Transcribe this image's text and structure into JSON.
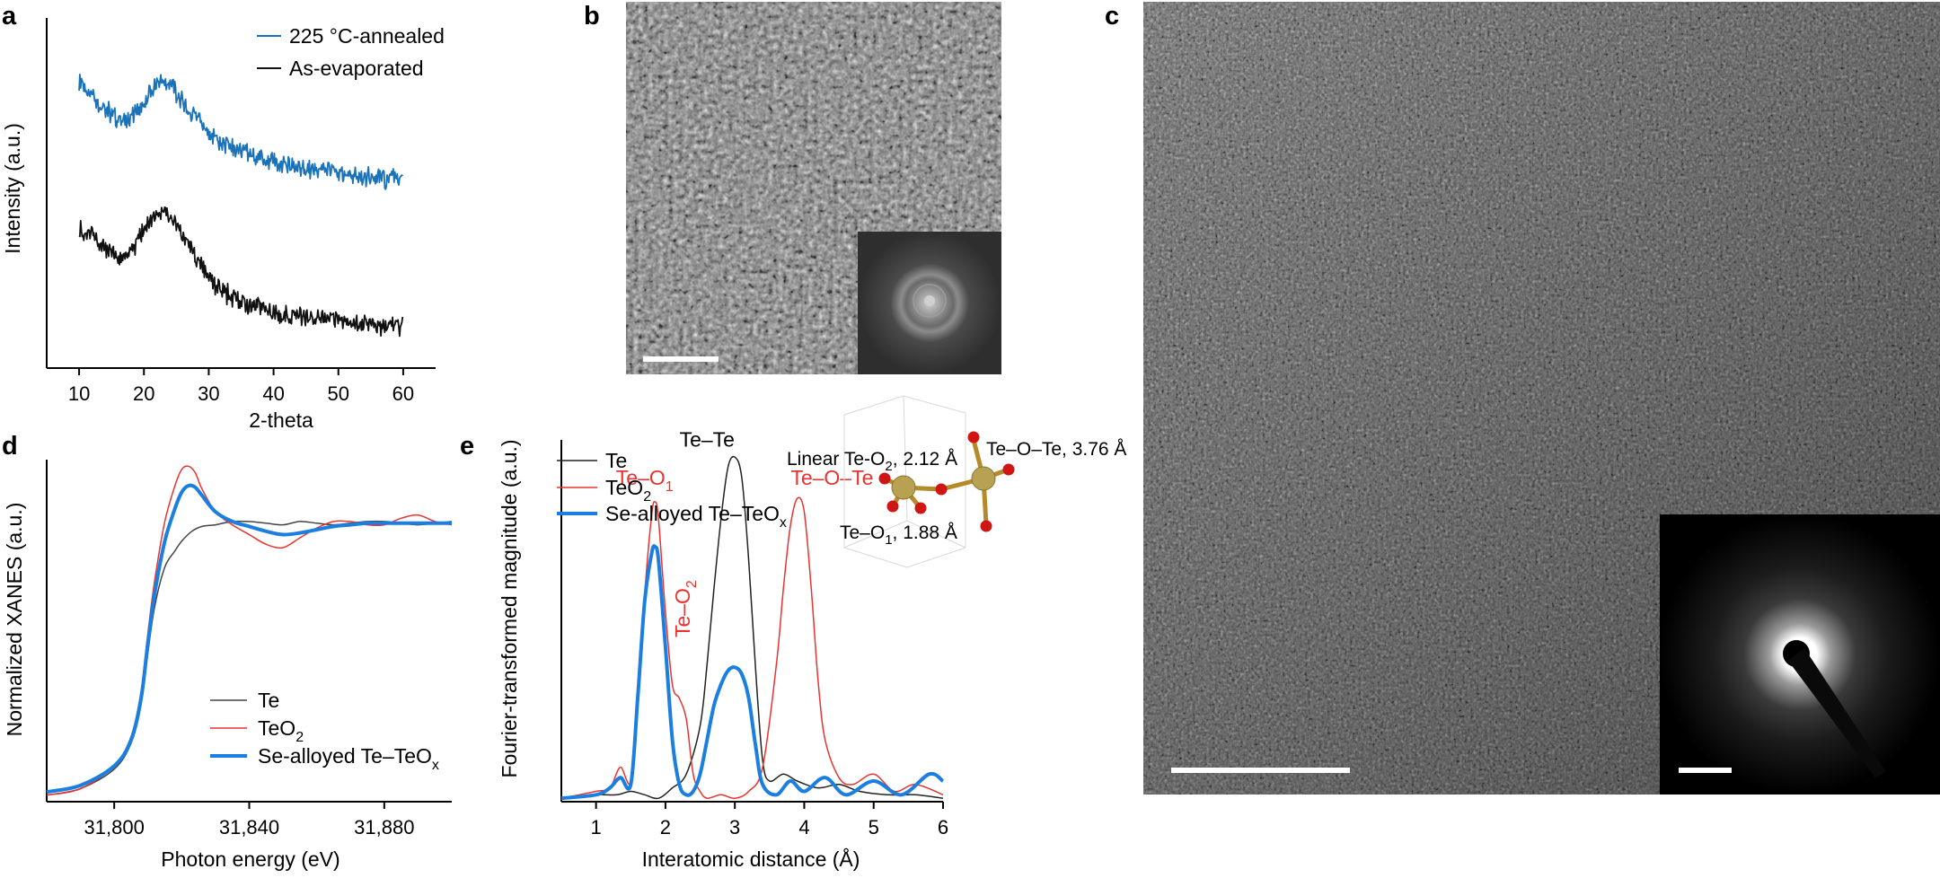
{
  "panels": {
    "a": "a",
    "b": "b",
    "c": "c",
    "d": "d",
    "e": "e"
  },
  "colors": {
    "blue": "#1a73b8",
    "bright_blue": "#1a7fe0",
    "red": "#e8332f",
    "black": "#111111"
  },
  "micrographs": {
    "b": {
      "main": "tem-image-amorphous",
      "inset": "fft-pattern"
    },
    "c": {
      "main": "tem-image-amorphous",
      "inset": "diffraction-pattern"
    }
  },
  "chart_data": [
    {
      "id": "a",
      "type": "line",
      "xlabel": "2-theta",
      "ylabel": "Intensity (a.u.)",
      "xlim": [
        5,
        65
      ],
      "xticks": [
        10,
        20,
        30,
        40,
        50,
        60
      ],
      "xtick_labels": [
        "10",
        "20",
        "30",
        "40",
        "50",
        "60"
      ],
      "ylim": [
        0,
        1
      ],
      "legend_position": "top-right",
      "series": [
        {
          "name": "225 °C-annealed",
          "color": "#1a73b8",
          "x": [
            10,
            12,
            14,
            16,
            18,
            20,
            21,
            22,
            23,
            24,
            25,
            26,
            28,
            30,
            32,
            35,
            38,
            40,
            42,
            45,
            48,
            50,
            52,
            55,
            58,
            60
          ],
          "y": [
            0.82,
            0.78,
            0.74,
            0.71,
            0.72,
            0.76,
            0.79,
            0.81,
            0.82,
            0.81,
            0.79,
            0.76,
            0.71,
            0.67,
            0.64,
            0.62,
            0.6,
            0.59,
            0.58,
            0.57,
            0.56,
            0.555,
            0.55,
            0.545,
            0.54,
            0.54
          ]
        },
        {
          "name": "As-evaporated",
          "color": "#111111",
          "x": [
            10,
            12,
            14,
            16,
            18,
            20,
            21,
            22,
            23,
            24,
            25,
            26,
            28,
            30,
            32,
            35,
            38,
            40,
            42,
            45,
            48,
            50,
            52,
            55,
            58,
            60
          ],
          "y": [
            0.4,
            0.38,
            0.34,
            0.31,
            0.33,
            0.39,
            0.42,
            0.44,
            0.45,
            0.44,
            0.42,
            0.38,
            0.31,
            0.26,
            0.22,
            0.19,
            0.17,
            0.16,
            0.15,
            0.145,
            0.14,
            0.135,
            0.13,
            0.125,
            0.12,
            0.12
          ]
        }
      ]
    },
    {
      "id": "d",
      "type": "line",
      "xlabel": "Photon energy (eV)",
      "ylabel": "Normalized XANES (a.u.)",
      "xlim": [
        31780,
        31900
      ],
      "xticks": [
        31800,
        31840,
        31880
      ],
      "xtick_labels": [
        "31,800",
        "31,840",
        "31,880"
      ],
      "ylim": [
        0,
        1.05
      ],
      "legend_position": "bottom-right",
      "series": [
        {
          "name": "Te",
          "color": "#444444",
          "width": 1.5,
          "x": [
            31780,
            31790,
            31800,
            31805,
            31808,
            31810,
            31812,
            31815,
            31818,
            31820,
            31823,
            31826,
            31830,
            31835,
            31840,
            31845,
            31850,
            31855,
            31860,
            31865,
            31870,
            31875,
            31880,
            31885,
            31890,
            31895,
            31900
          ],
          "y": [
            0.02,
            0.04,
            0.1,
            0.18,
            0.3,
            0.46,
            0.6,
            0.72,
            0.77,
            0.8,
            0.83,
            0.845,
            0.85,
            0.86,
            0.86,
            0.855,
            0.85,
            0.86,
            0.855,
            0.85,
            0.855,
            0.86,
            0.86,
            0.855,
            0.85,
            0.855,
            0.86
          ]
        },
        {
          "name": "TeO",
          "name_sub": "2",
          "color": "#e8332f",
          "width": 1.5,
          "x": [
            31780,
            31790,
            31800,
            31805,
            31808,
            31810,
            31812,
            31815,
            31818,
            31820,
            31822,
            31824,
            31826,
            31830,
            31835,
            31840,
            31845,
            31850,
            31855,
            31860,
            31865,
            31870,
            31875,
            31880,
            31885,
            31890,
            31895,
            31900
          ],
          "y": [
            0.02,
            0.04,
            0.11,
            0.2,
            0.34,
            0.52,
            0.68,
            0.86,
            0.97,
            1.02,
            1.03,
            1.01,
            0.96,
            0.89,
            0.85,
            0.82,
            0.79,
            0.78,
            0.81,
            0.84,
            0.86,
            0.86,
            0.85,
            0.85,
            0.87,
            0.88,
            0.86,
            0.85
          ]
        },
        {
          "name": "Se-alloyed Te–TeO",
          "name_sub": "x",
          "color": "#1a7fe0",
          "width": 4,
          "x": [
            31780,
            31790,
            31800,
            31805,
            31808,
            31810,
            31812,
            31815,
            31818,
            31820,
            31822,
            31824,
            31826,
            31830,
            31835,
            31840,
            31845,
            31850,
            31855,
            31860,
            31865,
            31870,
            31875,
            31880,
            31885,
            31890,
            31895,
            31900
          ],
          "y": [
            0.03,
            0.05,
            0.11,
            0.19,
            0.32,
            0.49,
            0.64,
            0.8,
            0.9,
            0.95,
            0.97,
            0.965,
            0.94,
            0.89,
            0.86,
            0.845,
            0.83,
            0.82,
            0.825,
            0.835,
            0.845,
            0.85,
            0.855,
            0.855,
            0.855,
            0.855,
            0.855,
            0.855
          ]
        }
      ]
    },
    {
      "id": "e",
      "type": "line",
      "xlabel": "Interatomic distance (Å)",
      "ylabel": "Fourier-transformed magnitude (a.u.)",
      "xlim": [
        0.5,
        6
      ],
      "xticks": [
        1,
        2,
        3,
        4,
        5,
        6
      ],
      "xtick_labels": [
        "1",
        "2",
        "3",
        "4",
        "5",
        "6"
      ],
      "ylim": [
        0,
        1.05
      ],
      "legend_position": "top-left",
      "series": [
        {
          "name": "Te",
          "color": "#222222",
          "width": 1.5,
          "x": [
            0.5,
            1.0,
            1.3,
            1.5,
            1.7,
            1.9,
            2.1,
            2.3,
            2.5,
            2.6,
            2.7,
            2.8,
            2.9,
            3.0,
            3.1,
            3.2,
            3.3,
            3.4,
            3.5,
            3.7,
            3.9,
            4.2,
            4.5,
            4.8,
            5.2,
            5.6,
            6.0
          ],
          "y": [
            0.01,
            0.02,
            0.02,
            0.03,
            0.02,
            0.01,
            0.04,
            0.08,
            0.22,
            0.4,
            0.62,
            0.82,
            0.97,
            1.0,
            0.94,
            0.7,
            0.38,
            0.12,
            0.06,
            0.08,
            0.06,
            0.04,
            0.05,
            0.03,
            0.02,
            0.02,
            0.01
          ]
        },
        {
          "name": "TeO",
          "name_sub": "2",
          "color": "#e8332f",
          "width": 1.5,
          "x": [
            0.5,
            1.0,
            1.2,
            1.35,
            1.5,
            1.6,
            1.7,
            1.8,
            1.85,
            1.9,
            2.0,
            2.1,
            2.2,
            2.3,
            2.4,
            2.5,
            2.6,
            2.8,
            3.0,
            3.2,
            3.4,
            3.6,
            3.7,
            3.8,
            3.9,
            4.0,
            4.1,
            4.2,
            4.3,
            4.5,
            4.7,
            5.0,
            5.3,
            5.6,
            6.0
          ],
          "y": [
            0.01,
            0.03,
            0.04,
            0.1,
            0.06,
            0.3,
            0.6,
            0.83,
            0.87,
            0.82,
            0.55,
            0.34,
            0.3,
            0.24,
            0.08,
            0.03,
            0.01,
            0.02,
            0.01,
            0.03,
            0.1,
            0.4,
            0.62,
            0.8,
            0.88,
            0.84,
            0.62,
            0.35,
            0.18,
            0.07,
            0.05,
            0.08,
            0.03,
            0.05,
            0.02
          ]
        },
        {
          "name": "Se-alloyed Te–TeO",
          "name_sub": "x",
          "color": "#1a7fe0",
          "width": 4,
          "x": [
            0.5,
            1.0,
            1.2,
            1.35,
            1.5,
            1.6,
            1.7,
            1.8,
            1.85,
            1.9,
            2.0,
            2.1,
            2.2,
            2.3,
            2.4,
            2.5,
            2.6,
            2.7,
            2.8,
            2.9,
            3.0,
            3.1,
            3.2,
            3.3,
            3.4,
            3.6,
            3.8,
            4.0,
            4.3,
            4.6,
            5.0,
            5.4,
            5.8,
            6.0
          ],
          "y": [
            0.01,
            0.02,
            0.04,
            0.07,
            0.05,
            0.3,
            0.58,
            0.72,
            0.74,
            0.7,
            0.45,
            0.18,
            0.05,
            0.02,
            0.03,
            0.08,
            0.18,
            0.28,
            0.34,
            0.38,
            0.39,
            0.37,
            0.3,
            0.16,
            0.05,
            0.02,
            0.06,
            0.03,
            0.07,
            0.02,
            0.06,
            0.02,
            0.08,
            0.06
          ]
        }
      ],
      "annotations_black": [
        {
          "text": "Te–Te",
          "x": 2.6,
          "y": 1.03
        }
      ],
      "annotations_red": [
        {
          "text": "Te–O",
          "sub": "1",
          "x": 1.7,
          "y": 0.92
        },
        {
          "text": "Te–O–Te",
          "x": 4.4,
          "y": 0.92
        }
      ],
      "annotation_rotated": {
        "text": "Te–O",
        "sub": "2",
        "x": 2.35,
        "y": 0.56
      }
    }
  ],
  "structure_inset": {
    "label_linear": "Linear Te-O",
    "label_linear_sub": "2",
    "label_linear_tail": ", 2.12 Å",
    "label_teote": "Te–O–Te, 3.76 Å",
    "label_teo1": "Te–O",
    "label_teo1_sub": "1",
    "label_teo1_tail": ", 1.88 Å"
  }
}
